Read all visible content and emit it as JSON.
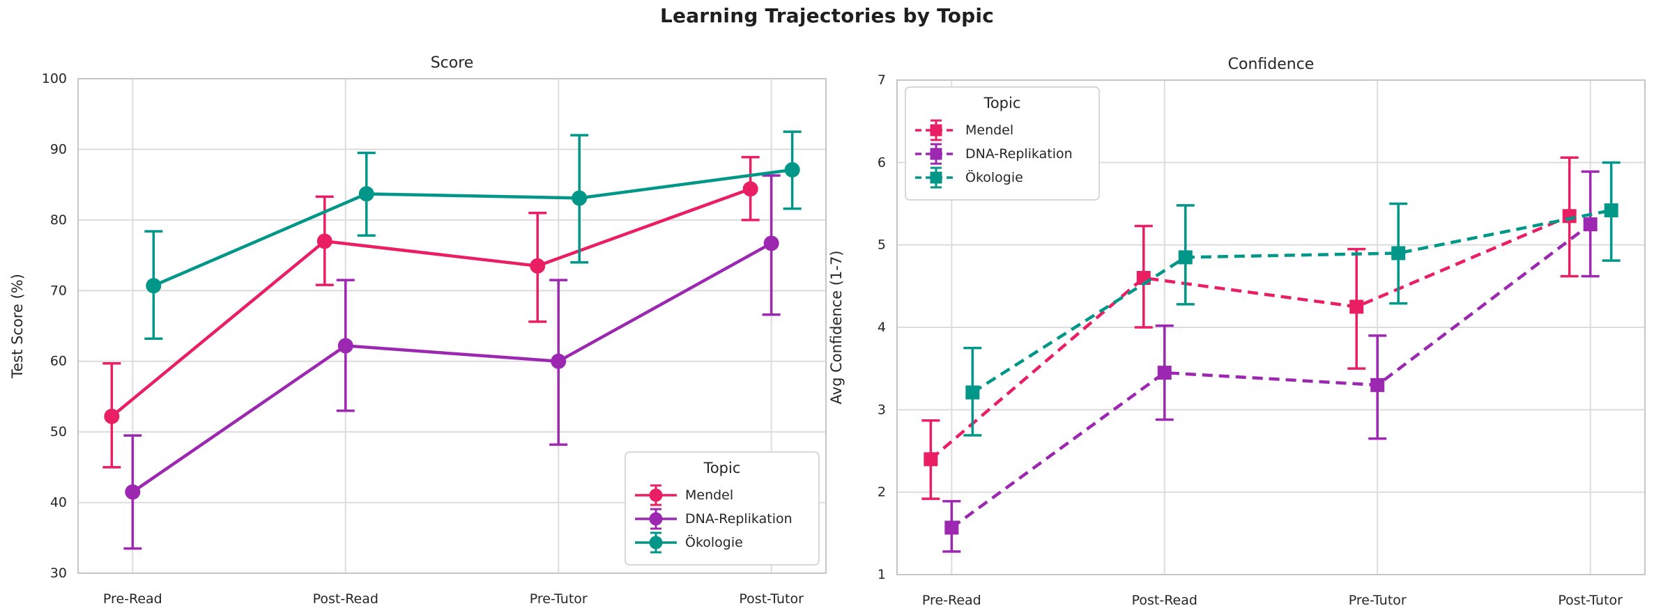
{
  "title": "Learning Trajectories by Topic",
  "colors": {
    "background": "#FFFFFF",
    "grid": "#DCDCDC",
    "spine": "#C6C6C6",
    "text": "#262626",
    "title_text": "#1F1F1F",
    "legend_border": "#CCCCCC",
    "series": {
      "Mendel": "#E91E63",
      "DNA-Replikation": "#9C27B0",
      "Ökologie": "#009688"
    }
  },
  "chart_data": [
    {
      "type": "line",
      "title": "Score",
      "xlabel": "",
      "ylabel": "Test Score (%)",
      "categories": [
        "Pre-Read",
        "Post-Read",
        "Pre-Tutor",
        "Post-Tutor"
      ],
      "ylim": [
        30,
        100
      ],
      "yticks": [
        30,
        40,
        50,
        60,
        70,
        80,
        90,
        100
      ],
      "grid": true,
      "marker": "circle",
      "line_style": "solid",
      "legend": {
        "title": "Topic",
        "position": "lower right",
        "entries": [
          "Mendel",
          "DNA-Replikation",
          "Ökologie"
        ]
      },
      "series": [
        {
          "name": "Mendel",
          "values": [
            52.2,
            77.0,
            73.5,
            84.4
          ],
          "err_lo": [
            45.0,
            70.8,
            65.6,
            80.0
          ],
          "err_hi": [
            59.7,
            83.3,
            81.0,
            88.9
          ]
        },
        {
          "name": "DNA-Replikation",
          "values": [
            41.5,
            62.2,
            60.0,
            76.7
          ],
          "err_lo": [
            33.5,
            53.0,
            48.2,
            66.6
          ],
          "err_hi": [
            49.5,
            71.5,
            71.5,
            86.3
          ]
        },
        {
          "name": "Ökologie",
          "values": [
            70.7,
            83.7,
            83.1,
            87.1
          ],
          "err_lo": [
            63.2,
            77.8,
            74.0,
            81.6
          ],
          "err_hi": [
            78.4,
            89.5,
            92.0,
            92.5
          ]
        }
      ]
    },
    {
      "type": "line",
      "title": "Confidence",
      "xlabel": "",
      "ylabel": "Avg Confidence (1-7)",
      "categories": [
        "Pre-Read",
        "Post-Read",
        "Pre-Tutor",
        "Post-Tutor"
      ],
      "ylim": [
        1,
        7
      ],
      "yticks": [
        1,
        2,
        3,
        4,
        5,
        6,
        7
      ],
      "grid": true,
      "marker": "square",
      "line_style": "dashed",
      "legend": {
        "title": "Topic",
        "position": "upper left",
        "entries": [
          "Mendel",
          "DNA-Replikation",
          "Ökologie"
        ]
      },
      "series": [
        {
          "name": "Mendel",
          "values": [
            2.4,
            4.6,
            4.25,
            5.35
          ],
          "err_lo": [
            1.92,
            4.0,
            3.5,
            4.62
          ],
          "err_hi": [
            2.87,
            5.23,
            4.95,
            6.06
          ]
        },
        {
          "name": "DNA-Replikation",
          "values": [
            1.57,
            3.45,
            3.3,
            5.25
          ],
          "err_lo": [
            1.28,
            2.88,
            2.65,
            4.62
          ],
          "err_hi": [
            1.89,
            4.02,
            3.9,
            5.89
          ]
        },
        {
          "name": "Ökologie",
          "values": [
            3.21,
            4.85,
            4.9,
            5.42
          ],
          "err_lo": [
            2.69,
            4.28,
            4.29,
            4.81
          ],
          "err_hi": [
            3.75,
            5.48,
            5.5,
            6.0
          ]
        }
      ]
    }
  ]
}
